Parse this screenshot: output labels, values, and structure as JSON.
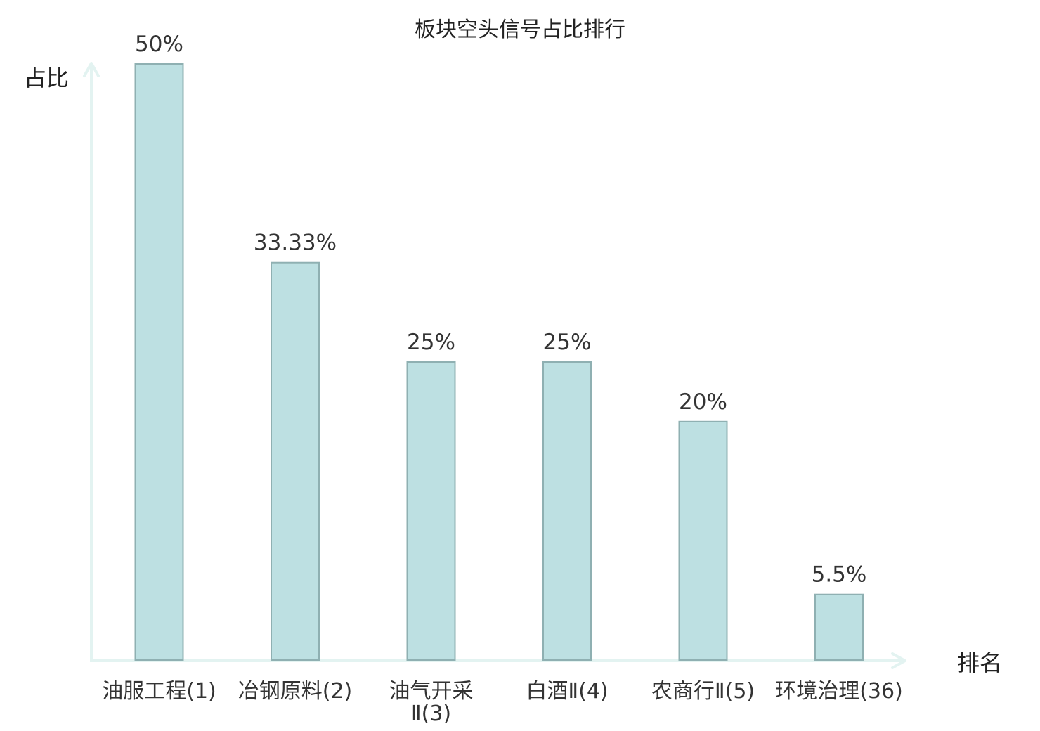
{
  "chart_data": {
    "type": "bar",
    "title": "板块空头信号占比排行",
    "ylabel": "占比",
    "xlabel": "排名",
    "categories": [
      [
        "油服工程(1)"
      ],
      [
        "冶钢原料(2)"
      ],
      [
        "油气开采",
        "Ⅱ(3)"
      ],
      [
        "白酒Ⅱ(4)"
      ],
      [
        "农商行Ⅱ(5)"
      ],
      [
        "环境治理(36)"
      ]
    ],
    "values": [
      50,
      33.33,
      25,
      25,
      20,
      5.5
    ],
    "value_labels": [
      "50%",
      "33.33%",
      "25%",
      "25%",
      "20%",
      "5.5%"
    ],
    "highlight_index": 5,
    "ylim": [
      0,
      50
    ],
    "grid": false,
    "colors": {
      "bar_fill": "#bde0e2",
      "bar_stroke": "#8fb0b2",
      "axis": "#e3f3f1",
      "highlight_label": "#e00000",
      "text": "#333333"
    }
  }
}
